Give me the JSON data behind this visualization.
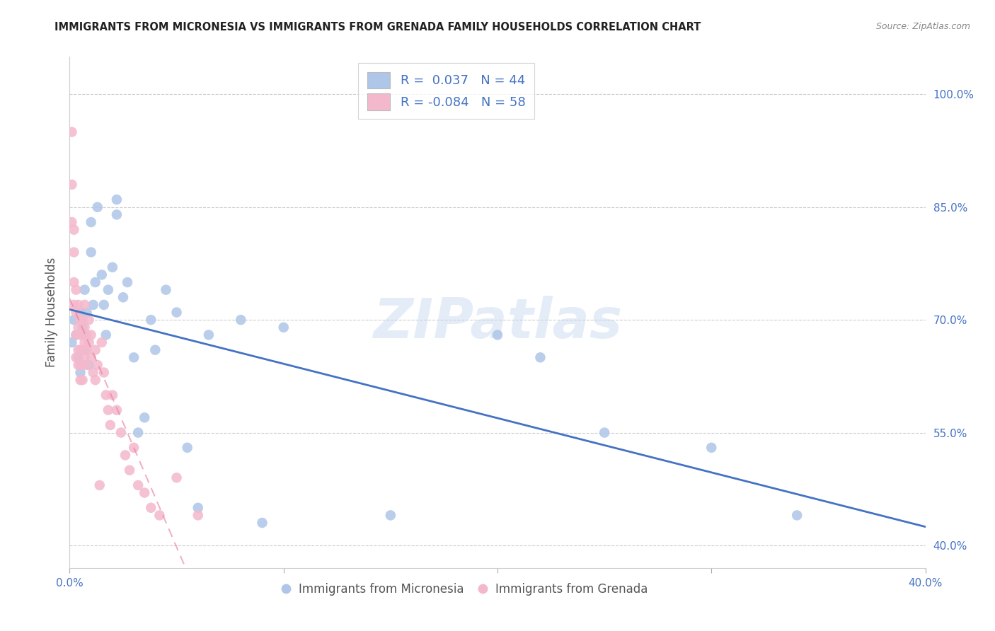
{
  "title": "IMMIGRANTS FROM MICRONESIA VS IMMIGRANTS FROM GRENADA FAMILY HOUSEHOLDS CORRELATION CHART",
  "source": "Source: ZipAtlas.com",
  "ylabel": "Family Households",
  "yticks": [
    "100.0%",
    "85.0%",
    "70.0%",
    "55.0%",
    "40.0%"
  ],
  "ytick_vals": [
    1.0,
    0.85,
    0.7,
    0.55,
    0.4
  ],
  "xlim": [
    0.0,
    0.4
  ],
  "ylim": [
    0.37,
    1.05
  ],
  "r_micronesia": 0.037,
  "n_micronesia": 44,
  "r_grenada": -0.084,
  "n_grenada": 58,
  "color_micronesia": "#aec6e8",
  "color_grenada": "#f4b8cc",
  "line_color_micronesia": "#4472c4",
  "line_color_grenada": "#e87d98",
  "watermark": "ZIPatlas",
  "micronesia_x": [
    0.001,
    0.002,
    0.003,
    0.004,
    0.005,
    0.005,
    0.006,
    0.007,
    0.007,
    0.008,
    0.009,
    0.01,
    0.01,
    0.011,
    0.012,
    0.013,
    0.015,
    0.016,
    0.017,
    0.018,
    0.02,
    0.022,
    0.022,
    0.025,
    0.027,
    0.03,
    0.032,
    0.035,
    0.038,
    0.04,
    0.045,
    0.05,
    0.055,
    0.06,
    0.065,
    0.08,
    0.09,
    0.1,
    0.15,
    0.2,
    0.22,
    0.25,
    0.3,
    0.34
  ],
  "micronesia_y": [
    0.67,
    0.7,
    0.68,
    0.65,
    0.63,
    0.71,
    0.69,
    0.74,
    0.66,
    0.71,
    0.64,
    0.79,
    0.83,
    0.72,
    0.75,
    0.85,
    0.76,
    0.72,
    0.68,
    0.74,
    0.77,
    0.86,
    0.84,
    0.73,
    0.75,
    0.65,
    0.55,
    0.57,
    0.7,
    0.66,
    0.74,
    0.71,
    0.53,
    0.45,
    0.68,
    0.7,
    0.43,
    0.69,
    0.44,
    0.68,
    0.65,
    0.55,
    0.53,
    0.44
  ],
  "grenada_x": [
    0.001,
    0.001,
    0.001,
    0.002,
    0.002,
    0.002,
    0.002,
    0.003,
    0.003,
    0.003,
    0.003,
    0.004,
    0.004,
    0.004,
    0.004,
    0.005,
    0.005,
    0.005,
    0.005,
    0.005,
    0.006,
    0.006,
    0.006,
    0.006,
    0.006,
    0.007,
    0.007,
    0.007,
    0.007,
    0.008,
    0.008,
    0.008,
    0.009,
    0.009,
    0.01,
    0.01,
    0.011,
    0.012,
    0.012,
    0.013,
    0.014,
    0.015,
    0.016,
    0.017,
    0.018,
    0.019,
    0.02,
    0.022,
    0.024,
    0.026,
    0.028,
    0.03,
    0.032,
    0.035,
    0.038,
    0.042,
    0.05,
    0.06
  ],
  "grenada_y": [
    0.95,
    0.88,
    0.83,
    0.82,
    0.79,
    0.75,
    0.72,
    0.74,
    0.71,
    0.68,
    0.65,
    0.72,
    0.69,
    0.66,
    0.64,
    0.7,
    0.68,
    0.66,
    0.64,
    0.62,
    0.7,
    0.68,
    0.66,
    0.64,
    0.62,
    0.72,
    0.69,
    0.67,
    0.65,
    0.68,
    0.66,
    0.64,
    0.7,
    0.67,
    0.68,
    0.65,
    0.63,
    0.66,
    0.62,
    0.64,
    0.48,
    0.67,
    0.63,
    0.6,
    0.58,
    0.56,
    0.6,
    0.58,
    0.55,
    0.52,
    0.5,
    0.53,
    0.48,
    0.47,
    0.45,
    0.44,
    0.49,
    0.44
  ],
  "grid_color": "#cccccc",
  "background_color": "#ffffff",
  "title_color": "#222222",
  "source_color": "#888888",
  "axis_color": "#4472c4",
  "legend_label_micronesia": "Immigrants from Micronesia",
  "legend_label_grenada": "Immigrants from Grenada"
}
